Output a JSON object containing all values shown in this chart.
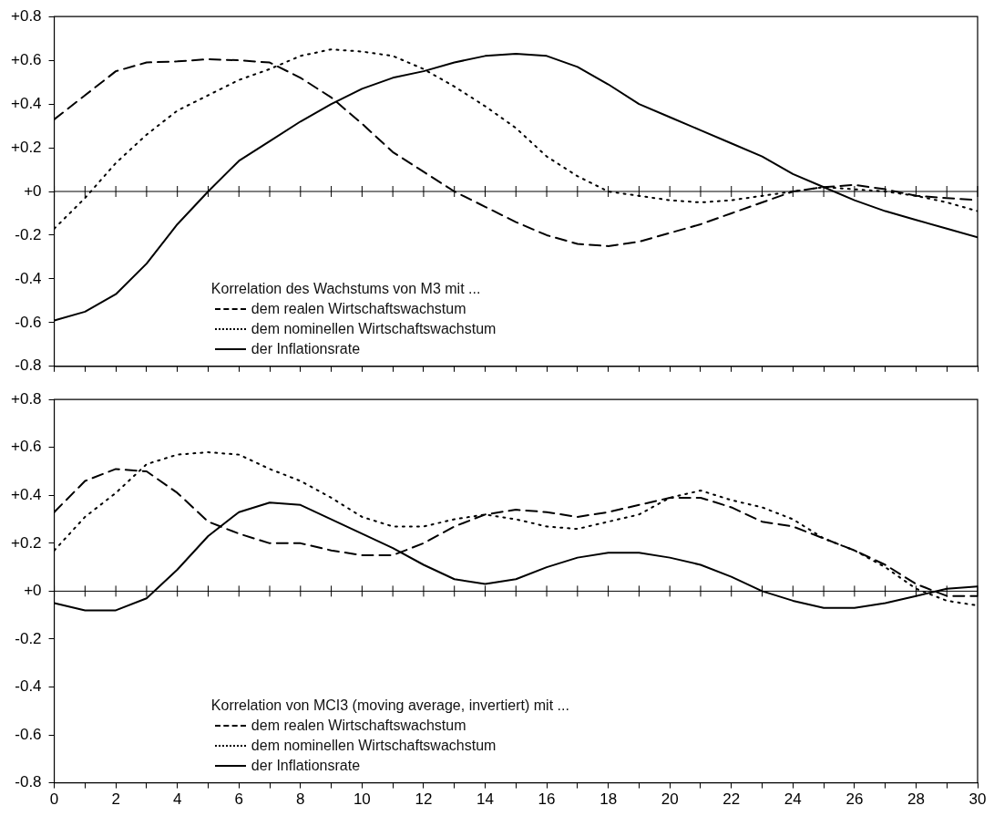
{
  "chart_data": [
    {
      "type": "line",
      "legend_title": "Korrelation des Wachstums von M3 mit ...",
      "legend": "bottom",
      "tick_labels": "y",
      "x": [
        0,
        1,
        2,
        3,
        4,
        5,
        6,
        7,
        8,
        9,
        10,
        11,
        12,
        13,
        14,
        15,
        16,
        17,
        18,
        19,
        20,
        21,
        22,
        23,
        24,
        25,
        26,
        27,
        28,
        29,
        30
      ],
      "xlim": [
        0,
        30
      ],
      "xticks": [
        {
          "value": 0,
          "label": null
        },
        {
          "value": 1,
          "label": null
        },
        {
          "value": 2,
          "label": null
        },
        {
          "value": 3,
          "label": null
        },
        {
          "value": 4,
          "label": null
        },
        {
          "value": 5,
          "label": null
        },
        {
          "value": 6,
          "label": null
        },
        {
          "value": 7,
          "label": null
        },
        {
          "value": 8,
          "label": null
        },
        {
          "value": 9,
          "label": null
        },
        {
          "value": 10,
          "label": null
        },
        {
          "value": 11,
          "label": null
        },
        {
          "value": 12,
          "label": null
        },
        {
          "value": 13,
          "label": null
        },
        {
          "value": 14,
          "label": null
        },
        {
          "value": 15,
          "label": null
        },
        {
          "value": 16,
          "label": null
        },
        {
          "value": 17,
          "label": null
        },
        {
          "value": 18,
          "label": null
        },
        {
          "value": 19,
          "label": null
        },
        {
          "value": 20,
          "label": null
        },
        {
          "value": 21,
          "label": null
        },
        {
          "value": 22,
          "label": null
        },
        {
          "value": 23,
          "label": null
        },
        {
          "value": 24,
          "label": null
        },
        {
          "value": 25,
          "label": null
        },
        {
          "value": 26,
          "label": null
        },
        {
          "value": 27,
          "label": null
        },
        {
          "value": 28,
          "label": null
        },
        {
          "value": 29,
          "label": null
        },
        {
          "value": 30,
          "label": null
        }
      ],
      "ylim": [
        -0.8,
        0.8
      ],
      "yticks": [
        {
          "value": 0.8,
          "label": "+0.8"
        },
        {
          "value": 0.6,
          "label": "+0.6"
        },
        {
          "value": 0.4,
          "label": "+0.4"
        },
        {
          "value": 0.2,
          "label": "+0.2"
        },
        {
          "value": 0,
          "label": "+0"
        },
        -0.2,
        -0.4,
        -0.6,
        -0.8
      ],
      "ref_lines": [
        {
          "axis": "y",
          "value": 0,
          "color": "#000000"
        }
      ],
      "series": [
        {
          "name": "dem realen Wirtschaftswachstum",
          "color": "#000000",
          "line_style": "dashed",
          "values": [
            0.33,
            0.44,
            0.55,
            0.59,
            0.595,
            0.605,
            0.6,
            0.59,
            0.52,
            0.43,
            0.31,
            0.18,
            0.09,
            0.0,
            -0.07,
            -0.14,
            -0.2,
            -0.24,
            -0.25,
            -0.23,
            -0.19,
            -0.15,
            -0.1,
            -0.05,
            0.0,
            0.02,
            0.03,
            0.01,
            -0.02,
            -0.03,
            -0.04
          ]
        },
        {
          "name": "dem nominellen Wirtschaftswachstum",
          "color": "#000000",
          "line_style": "dotted",
          "values": [
            -0.17,
            -0.03,
            0.13,
            0.26,
            0.37,
            0.44,
            0.51,
            0.56,
            0.62,
            0.65,
            0.64,
            0.62,
            0.56,
            0.48,
            0.39,
            0.29,
            0.16,
            0.07,
            0.0,
            -0.02,
            -0.04,
            -0.05,
            -0.04,
            -0.02,
            0.0,
            0.02,
            0.01,
            0.0,
            -0.02,
            -0.05,
            -0.09
          ]
        },
        {
          "name": "der Inflationsrate",
          "color": "#000000",
          "line_style": "solid",
          "values": [
            -0.59,
            -0.55,
            -0.47,
            -0.33,
            -0.15,
            0.0,
            0.14,
            0.23,
            0.32,
            0.4,
            0.47,
            0.52,
            0.55,
            0.59,
            0.62,
            0.63,
            0.62,
            0.57,
            0.49,
            0.4,
            0.34,
            0.28,
            0.22,
            0.16,
            0.08,
            0.02,
            -0.04,
            -0.09,
            -0.13,
            -0.17,
            -0.21
          ]
        }
      ]
    },
    {
      "type": "line",
      "legend_title": "Korrelation von MCI3 (moving average, invertiert) mit ...",
      "legend": "bottom",
      "x": [
        0,
        1,
        2,
        3,
        4,
        5,
        6,
        7,
        8,
        9,
        10,
        11,
        12,
        13,
        14,
        15,
        16,
        17,
        18,
        19,
        20,
        21,
        22,
        23,
        24,
        25,
        26,
        27,
        28,
        29,
        30
      ],
      "xlim": [
        0,
        30
      ],
      "xticks": [
        0,
        {
          "value": 1,
          "label": null
        },
        2,
        {
          "value": 3,
          "label": null
        },
        4,
        {
          "value": 5,
          "label": null
        },
        6,
        {
          "value": 7,
          "label": null
        },
        8,
        {
          "value": 9,
          "label": null
        },
        10,
        {
          "value": 11,
          "label": null
        },
        12,
        {
          "value": 13,
          "label": null
        },
        14,
        {
          "value": 15,
          "label": null
        },
        16,
        {
          "value": 17,
          "label": null
        },
        18,
        {
          "value": 19,
          "label": null
        },
        20,
        {
          "value": 21,
          "label": null
        },
        22,
        {
          "value": 23,
          "label": null
        },
        24,
        {
          "value": 25,
          "label": null
        },
        26,
        {
          "value": 27,
          "label": null
        },
        28,
        {
          "value": 29,
          "label": null
        },
        30
      ],
      "ylim": [
        -0.8,
        0.8
      ],
      "yticks": [
        {
          "value": 0.8,
          "label": "+0.8"
        },
        {
          "value": 0.6,
          "label": "+0.6"
        },
        {
          "value": 0.4,
          "label": "+0.4"
        },
        {
          "value": 0.2,
          "label": "+0.2"
        },
        {
          "value": 0,
          "label": "+0"
        },
        -0.2,
        -0.4,
        -0.6,
        -0.8
      ],
      "ref_lines": [
        {
          "axis": "y",
          "value": 0,
          "color": "#000000"
        }
      ],
      "series": [
        {
          "name": "dem realen Wirtschaftswachstum",
          "color": "#000000",
          "line_style": "dashed",
          "values": [
            0.33,
            0.46,
            0.51,
            0.5,
            0.41,
            0.29,
            0.24,
            0.2,
            0.2,
            0.17,
            0.15,
            0.15,
            0.2,
            0.27,
            0.32,
            0.34,
            0.33,
            0.31,
            0.33,
            0.36,
            0.39,
            0.39,
            0.35,
            0.29,
            0.27,
            0.22,
            0.17,
            0.11,
            0.03,
            -0.02,
            -0.02
          ]
        },
        {
          "name": "dem nominellen Wirtschaftswachstum",
          "color": "#000000",
          "line_style": "dotted",
          "values": [
            0.17,
            0.31,
            0.41,
            0.53,
            0.57,
            0.58,
            0.57,
            0.51,
            0.46,
            0.39,
            0.31,
            0.27,
            0.27,
            0.3,
            0.32,
            0.3,
            0.27,
            0.26,
            0.29,
            0.32,
            0.39,
            0.42,
            0.38,
            0.35,
            0.3,
            0.22,
            0.17,
            0.1,
            0.01,
            -0.04,
            -0.06
          ]
        },
        {
          "name": "der Inflationsrate",
          "color": "#000000",
          "line_style": "solid",
          "values": [
            -0.05,
            -0.08,
            -0.08,
            -0.03,
            0.09,
            0.23,
            0.33,
            0.37,
            0.36,
            0.3,
            0.24,
            0.18,
            0.11,
            0.05,
            0.03,
            0.05,
            0.1,
            0.14,
            0.16,
            0.16,
            0.14,
            0.11,
            0.06,
            0.0,
            -0.04,
            -0.07,
            -0.07,
            -0.05,
            -0.02,
            0.01,
            0.02
          ]
        }
      ]
    }
  ]
}
